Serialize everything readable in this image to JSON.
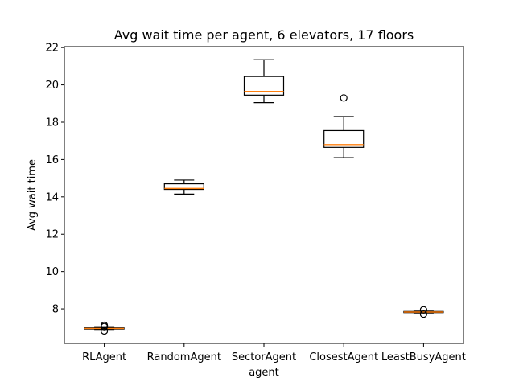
{
  "chart_data": {
    "type": "box",
    "title": "Avg wait time per agent, 6 elevators, 17 floors",
    "xlabel": "agent",
    "ylabel": "Avg wait time",
    "ylim": [
      6.15,
      22.05
    ],
    "yticks": [
      "8",
      "10",
      "12",
      "14",
      "16",
      "18",
      "20",
      "22"
    ],
    "categories": [
      "RLAgent",
      "RandomAgent",
      "SectorAgent",
      "ClosestAgent",
      "LeastBusyAgent"
    ],
    "boxes": [
      {
        "name": "RLAgent",
        "whisker_low": 6.9,
        "q1": 6.92,
        "median": 6.95,
        "q3": 6.98,
        "whisker_high": 7.0,
        "outliers": [
          6.82,
          7.05,
          7.12
        ]
      },
      {
        "name": "RandomAgent",
        "whisker_low": 14.15,
        "q1": 14.4,
        "median": 14.45,
        "q3": 14.7,
        "whisker_high": 14.9,
        "outliers": []
      },
      {
        "name": "SectorAgent",
        "whisker_low": 19.05,
        "q1": 19.45,
        "median": 19.65,
        "q3": 20.45,
        "whisker_high": 21.35,
        "outliers": []
      },
      {
        "name": "ClosestAgent",
        "whisker_low": 16.1,
        "q1": 16.65,
        "median": 16.8,
        "q3": 17.55,
        "whisker_high": 18.3,
        "outliers": [
          19.3
        ]
      },
      {
        "name": "LeastBusyAgent",
        "whisker_low": 7.78,
        "q1": 7.8,
        "median": 7.83,
        "q3": 7.86,
        "whisker_high": 7.88,
        "outliers": [
          7.72,
          7.95
        ]
      }
    ],
    "colors": {
      "box": "#000000",
      "median": "#ff7f0e",
      "outlier": "#000000"
    },
    "grid": false,
    "legend": "none"
  }
}
